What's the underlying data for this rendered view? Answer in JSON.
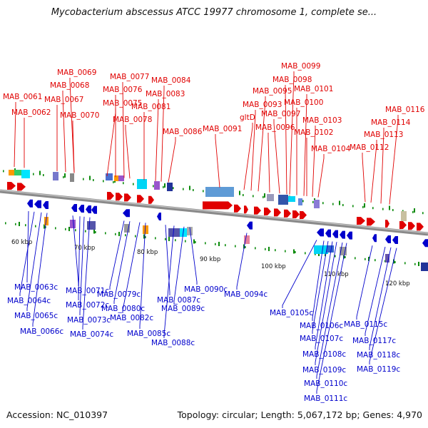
{
  "title": "Mycobacterium abscessus ATCC 19977 chromosome 1, complete se...",
  "footer": {
    "accession": "Accession: NC_010397",
    "summary": "Topology: circular; Length: 5,067,172 bp; Genes: 4,970"
  },
  "colors": {
    "forward": "#e00000",
    "reverse": "#0000cc",
    "tick": "#0a8a0a",
    "backbone": "#8a8a8a"
  },
  "scale_labels": [
    "60 kbp",
    "70 kbp",
    "80 kbp",
    "90 kbp",
    "100 kbp",
    "110 kbp",
    "120 kbp"
  ],
  "forward_labels": [
    "MAB_0061",
    "MAB_0062",
    "MAB_0067",
    "MAB_0068",
    "MAB_0069",
    "MAB_0070",
    "MAB_0075",
    "MAB_0076",
    "MAB_0077",
    "MAB_0078",
    "MAB_0081",
    "MAB_0083",
    "MAB_0084",
    "MAB_0086",
    "MAB_0091",
    "gltD",
    "MAB_0093",
    "MAB_0095",
    "MAB_0096",
    "MAB_0097",
    "MAB_0098",
    "MAB_0099",
    "MAB_0100",
    "MAB_0101",
    "MAB_0102",
    "MAB_0103",
    "MAB_0104",
    "MAB_0112",
    "MAB_0113",
    "MAB_0114",
    "MAB_0116"
  ],
  "reverse_labels": [
    "MAB_0063c",
    "MAB_0064c",
    "MAB_0065c",
    "MAB_0066c",
    "MAB_0071c",
    "MAB_0072c",
    "MAB_0073c",
    "MAB_0074c",
    "MAB_0079c",
    "MAB_0080c",
    "MAB_0082c",
    "MAB_0085c",
    "MAB_0087c",
    "MAB_0088c",
    "MAB_0089c",
    "MAB_0090c",
    "MAB_0094c",
    "MAB_0105c",
    "MAB_0106c",
    "MAB_0107c",
    "MAB_0108c",
    "MAB_0109c",
    "MAB_0110c",
    "MAB_0111c",
    "MAB_0115c",
    "MAB_0117c",
    "MAB_0118c",
    "MAB_0119c"
  ]
}
